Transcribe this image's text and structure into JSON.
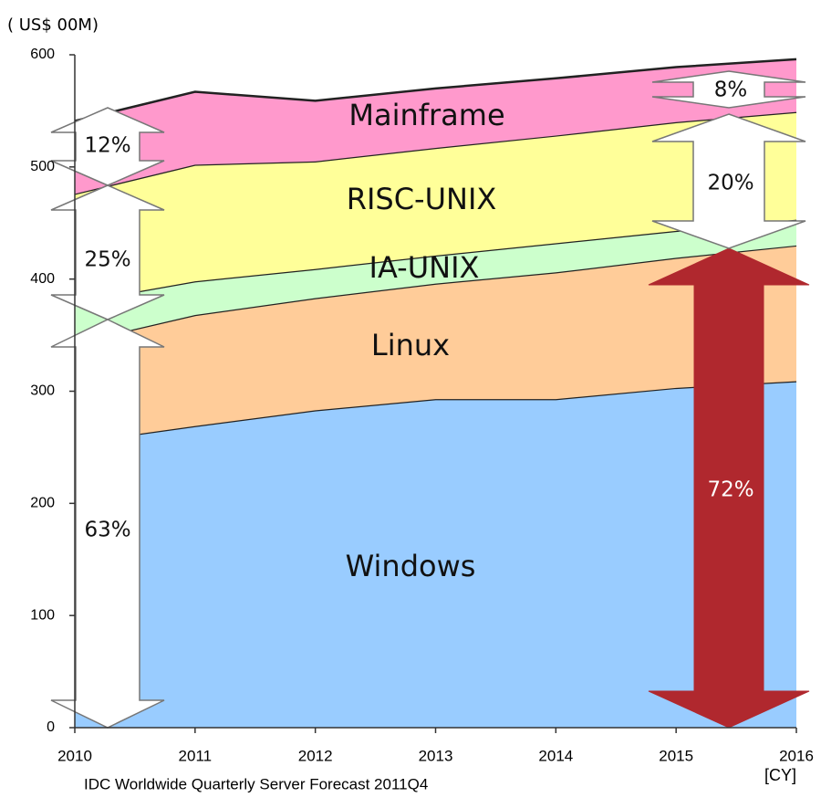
{
  "chart_data": {
    "type": "stacked_area",
    "y_axis_label": "( US$ 00M)",
    "x_axis_label": "[CY]",
    "source": "IDC Worldwide Quarterly Server Forecast 2011Q4",
    "x": [
      2010,
      2011,
      2012,
      2013,
      2014,
      2015,
      2016
    ],
    "xlim": [
      2010,
      2016
    ],
    "xticks": [
      2010,
      2011,
      2012,
      2013,
      2014,
      2015,
      2016
    ],
    "ylim": [
      0,
      600
    ],
    "yticks": [
      0,
      100,
      200,
      300,
      400,
      500,
      600
    ],
    "grid": false,
    "series": [
      {
        "name": "Windows",
        "color": "#99ccff",
        "values": [
          254,
          269,
          283,
          293,
          293,
          303,
          309
        ]
      },
      {
        "name": "Linux",
        "color": "#ffcc99",
        "values": [
          89,
          99,
          100,
          103,
          113,
          116,
          121
        ]
      },
      {
        "name": "IA-UNIX",
        "color": "#ccffcc",
        "values": [
          36,
          30,
          26,
          25,
          26,
          24,
          23
        ]
      },
      {
        "name": "RISC-UNIX",
        "color": "#ffff99",
        "values": [
          97,
          104,
          96,
          96,
          96,
          97,
          96
        ]
      },
      {
        "name": "Mainframe",
        "color": "#ff99cc",
        "values": [
          65,
          65,
          54,
          53,
          51,
          49,
          47
        ]
      }
    ],
    "annotations": [
      "63%",
      "25%",
      "12%",
      "72%",
      "20%",
      "8%"
    ]
  }
}
